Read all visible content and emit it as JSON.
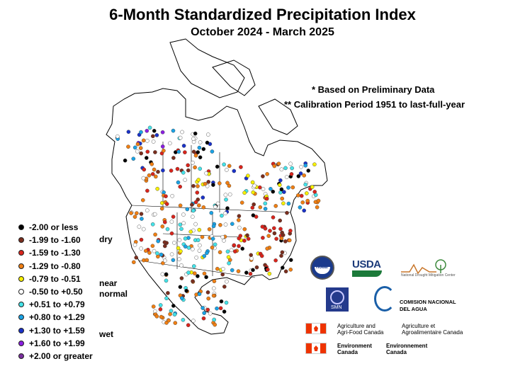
{
  "title": "6-Month Standardized Precipitation Index",
  "subtitle": "October 2024 - March 2025",
  "notes": [
    "* Based on Preliminary Data",
    "** Calibration Period 1951 to last-full-year"
  ],
  "legend": {
    "items": [
      {
        "label": "-2.00 or less",
        "color": "#000000"
      },
      {
        "label": "-1.99 to -1.60",
        "color": "#7a2e1e"
      },
      {
        "label": "-1.59 to -1.30",
        "color": "#d9241c"
      },
      {
        "label": "-1.29 to -0.80",
        "color": "#f07f13"
      },
      {
        "label": "-0.79 to -0.51",
        "color": "#f7f000"
      },
      {
        "label": "-0.50 to +0.50",
        "color": "#ffffff"
      },
      {
        "label": "+0.51 to +0.79",
        "color": "#44e2e8"
      },
      {
        "label": "+0.80 to +1.29",
        "color": "#1aa3e6"
      },
      {
        "label": "+1.30 to +1.59",
        "color": "#1a32c8"
      },
      {
        "label": "+1.60 to +1.99",
        "color": "#8a1ee0"
      },
      {
        "label": "+2.00 or greater",
        "color": "#7a2e9e"
      }
    ],
    "groups": {
      "dry": "dry",
      "near_normal": "near\nnormal",
      "wet": "wet"
    }
  },
  "logos": {
    "noaa": "noaa",
    "usda": "USDA",
    "ndmc": "National Drought Mitigation Center",
    "smn": "SMN",
    "conagua": "COMISION NACIONAL\nDEL AGUA",
    "agri_en": "Agriculture and\nAgri-Food Canada",
    "agri_fr": "Agriculture et\nAgroalimentaire Canada",
    "env_en": "Environment\nCanada",
    "env_fr": "Environnement\nCanada"
  }
}
